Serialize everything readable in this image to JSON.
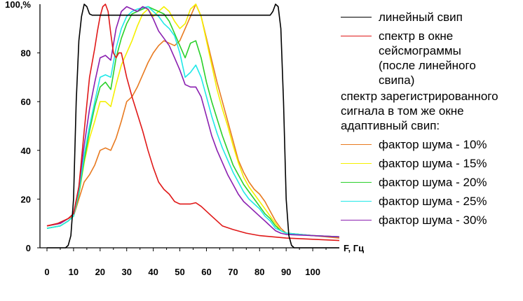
{
  "chart_data": {
    "type": "line",
    "xlabel": "F, Гц",
    "ylabel": "",
    "y_max_tick_label": "100,%",
    "xlim": [
      0,
      110
    ],
    "ylim": [
      0,
      100
    ],
    "x_ticks": [
      "0",
      "10",
      "20",
      "30",
      "40",
      "50",
      "60",
      "70",
      "80",
      "90",
      "100"
    ],
    "y_ticks": [
      "0",
      "20",
      "40",
      "60",
      "80"
    ],
    "grid": false,
    "legend_position": "right",
    "legend_heading": "спектр зарегистрированного сигнала в том же окне адаптивный свип:",
    "series": [
      {
        "name": "линейный свип",
        "color": "#000000",
        "points": [
          [
            0,
            0
          ],
          [
            7,
            0
          ],
          [
            8,
            1
          ],
          [
            9,
            5
          ],
          [
            10,
            20
          ],
          [
            11,
            60
          ],
          [
            12,
            85
          ],
          [
            13,
            95
          ],
          [
            14,
            100
          ],
          [
            15,
            99
          ],
          [
            16,
            96
          ],
          [
            17,
            95.5
          ],
          [
            30,
            95.5
          ],
          [
            50,
            95.5
          ],
          [
            70,
            95.5
          ],
          [
            84,
            95.5
          ],
          [
            85,
            97
          ],
          [
            86,
            100
          ],
          [
            87,
            99
          ],
          [
            88,
            90
          ],
          [
            89,
            60
          ],
          [
            90,
            20
          ],
          [
            91,
            5
          ],
          [
            92,
            1
          ],
          [
            93,
            0
          ],
          [
            110,
            0
          ]
        ]
      },
      {
        "name": "спектр в окне сейсмограммы (после линейного свипа)",
        "color": "#e01818",
        "points": [
          [
            0,
            9
          ],
          [
            4,
            10
          ],
          [
            8,
            12
          ],
          [
            10,
            14
          ],
          [
            12,
            25
          ],
          [
            14,
            48
          ],
          [
            16,
            70
          ],
          [
            18,
            82
          ],
          [
            19,
            89
          ],
          [
            20,
            95
          ],
          [
            21,
            99
          ],
          [
            22,
            100
          ],
          [
            23,
            97
          ],
          [
            24,
            88
          ],
          [
            25,
            80
          ],
          [
            26,
            78
          ],
          [
            27,
            80
          ],
          [
            28,
            80
          ],
          [
            30,
            70
          ],
          [
            32,
            62
          ],
          [
            34,
            55
          ],
          [
            36,
            48
          ],
          [
            38,
            40
          ],
          [
            40,
            33
          ],
          [
            42,
            27
          ],
          [
            44,
            24
          ],
          [
            46,
            22
          ],
          [
            48,
            19
          ],
          [
            50,
            18
          ],
          [
            52,
            18
          ],
          [
            54,
            18
          ],
          [
            56,
            18.5
          ],
          [
            58,
            17
          ],
          [
            60,
            15
          ],
          [
            62,
            13
          ],
          [
            64,
            11
          ],
          [
            66,
            9
          ],
          [
            70,
            7.5
          ],
          [
            75,
            6
          ],
          [
            80,
            5
          ],
          [
            90,
            4
          ],
          [
            100,
            3.5
          ],
          [
            110,
            3
          ]
        ]
      },
      {
        "name": "фактор шума - 10%",
        "color": "#e87a20",
        "points": [
          [
            0,
            9
          ],
          [
            5,
            10
          ],
          [
            8,
            12
          ],
          [
            10,
            13
          ],
          [
            12,
            20
          ],
          [
            14,
            27
          ],
          [
            16,
            30
          ],
          [
            18,
            34
          ],
          [
            20,
            40
          ],
          [
            22,
            41
          ],
          [
            24,
            40
          ],
          [
            26,
            45
          ],
          [
            28,
            52
          ],
          [
            30,
            60
          ],
          [
            32,
            62
          ],
          [
            34,
            66
          ],
          [
            36,
            71
          ],
          [
            38,
            76
          ],
          [
            40,
            80
          ],
          [
            42,
            83
          ],
          [
            44,
            85
          ],
          [
            46,
            84
          ],
          [
            48,
            83
          ],
          [
            50,
            85
          ],
          [
            52,
            90
          ],
          [
            54,
            95
          ],
          [
            56,
            100
          ],
          [
            58,
            95
          ],
          [
            60,
            86
          ],
          [
            62,
            77
          ],
          [
            64,
            68
          ],
          [
            66,
            60
          ],
          [
            68,
            52
          ],
          [
            70,
            44
          ],
          [
            72,
            36
          ],
          [
            74,
            31
          ],
          [
            76,
            27
          ],
          [
            78,
            24
          ],
          [
            80,
            22
          ],
          [
            82,
            19
          ],
          [
            84,
            15
          ],
          [
            86,
            11
          ],
          [
            88,
            8
          ],
          [
            90,
            6
          ],
          [
            100,
            5
          ],
          [
            110,
            4
          ]
        ]
      },
      {
        "name": "фактор шума - 15%",
        "color": "#f5f000",
        "points": [
          [
            0,
            8
          ],
          [
            5,
            9
          ],
          [
            8,
            11
          ],
          [
            10,
            13
          ],
          [
            12,
            22
          ],
          [
            14,
            35
          ],
          [
            16,
            45
          ],
          [
            18,
            52
          ],
          [
            20,
            60
          ],
          [
            22,
            60
          ],
          [
            24,
            58
          ],
          [
            26,
            67
          ],
          [
            28,
            75
          ],
          [
            30,
            80
          ],
          [
            32,
            85
          ],
          [
            34,
            91
          ],
          [
            36,
            96
          ],
          [
            38,
            98
          ],
          [
            40,
            95
          ],
          [
            42,
            97
          ],
          [
            44,
            99
          ],
          [
            46,
            97
          ],
          [
            48,
            93
          ],
          [
            50,
            90
          ],
          [
            52,
            92
          ],
          [
            54,
            98
          ],
          [
            56,
            100
          ],
          [
            58,
            95
          ],
          [
            60,
            85
          ],
          [
            62,
            75
          ],
          [
            64,
            65
          ],
          [
            66,
            57
          ],
          [
            68,
            50
          ],
          [
            70,
            42
          ],
          [
            72,
            35
          ],
          [
            74,
            29
          ],
          [
            76,
            25
          ],
          [
            78,
            22
          ],
          [
            80,
            19
          ],
          [
            82,
            16
          ],
          [
            84,
            13
          ],
          [
            86,
            10
          ],
          [
            88,
            7
          ],
          [
            90,
            6
          ],
          [
            100,
            5
          ],
          [
            110,
            4.5
          ]
        ]
      },
      {
        "name": "фактор шума - 20%",
        "color": "#2ad02a",
        "points": [
          [
            0,
            8
          ],
          [
            5,
            9
          ],
          [
            8,
            11
          ],
          [
            10,
            13
          ],
          [
            12,
            22
          ],
          [
            14,
            36
          ],
          [
            16,
            48
          ],
          [
            18,
            58
          ],
          [
            20,
            66
          ],
          [
            22,
            68
          ],
          [
            24,
            65
          ],
          [
            26,
            78
          ],
          [
            28,
            86
          ],
          [
            30,
            92
          ],
          [
            32,
            96
          ],
          [
            34,
            97
          ],
          [
            36,
            98
          ],
          [
            38,
            99
          ],
          [
            40,
            98
          ],
          [
            42,
            97
          ],
          [
            44,
            96
          ],
          [
            46,
            93
          ],
          [
            48,
            88
          ],
          [
            50,
            83
          ],
          [
            52,
            78
          ],
          [
            54,
            84
          ],
          [
            56,
            85
          ],
          [
            58,
            78
          ],
          [
            60,
            68
          ],
          [
            62,
            60
          ],
          [
            64,
            53
          ],
          [
            66,
            46
          ],
          [
            68,
            40
          ],
          [
            70,
            34
          ],
          [
            72,
            30
          ],
          [
            74,
            26
          ],
          [
            76,
            23
          ],
          [
            78,
            20
          ],
          [
            80,
            17
          ],
          [
            82,
            14
          ],
          [
            84,
            12
          ],
          [
            86,
            9
          ],
          [
            88,
            7
          ],
          [
            90,
            6
          ],
          [
            100,
            5
          ],
          [
            110,
            4.5
          ]
        ]
      },
      {
        "name": "фактор шума - 25%",
        "color": "#20e8e8",
        "points": [
          [
            0,
            8
          ],
          [
            5,
            9
          ],
          [
            8,
            11
          ],
          [
            10,
            13
          ],
          [
            12,
            23
          ],
          [
            14,
            38
          ],
          [
            16,
            50
          ],
          [
            18,
            60
          ],
          [
            20,
            70
          ],
          [
            22,
            71
          ],
          [
            24,
            70
          ],
          [
            26,
            82
          ],
          [
            28,
            90
          ],
          [
            30,
            95
          ],
          [
            32,
            97
          ],
          [
            34,
            98
          ],
          [
            36,
            98.5
          ],
          [
            38,
            99
          ],
          [
            40,
            97
          ],
          [
            42,
            95
          ],
          [
            44,
            92
          ],
          [
            46,
            90
          ],
          [
            48,
            87
          ],
          [
            50,
            80
          ],
          [
            52,
            70
          ],
          [
            54,
            72
          ],
          [
            56,
            75
          ],
          [
            58,
            70
          ],
          [
            60,
            62
          ],
          [
            62,
            54
          ],
          [
            64,
            47
          ],
          [
            66,
            41
          ],
          [
            68,
            36
          ],
          [
            70,
            31
          ],
          [
            72,
            27
          ],
          [
            74,
            23
          ],
          [
            76,
            20
          ],
          [
            78,
            18
          ],
          [
            80,
            16
          ],
          [
            82,
            13
          ],
          [
            84,
            11
          ],
          [
            86,
            8
          ],
          [
            88,
            7
          ],
          [
            90,
            6
          ],
          [
            100,
            5
          ],
          [
            110,
            4.5
          ]
        ]
      },
      {
        "name": "фактор шума - 30%",
        "color": "#8a1fb0",
        "points": [
          [
            0,
            9
          ],
          [
            5,
            10
          ],
          [
            8,
            12
          ],
          [
            10,
            14
          ],
          [
            12,
            25
          ],
          [
            14,
            42
          ],
          [
            16,
            57
          ],
          [
            18,
            68
          ],
          [
            20,
            78
          ],
          [
            22,
            79
          ],
          [
            24,
            77
          ],
          [
            26,
            90
          ],
          [
            28,
            97
          ],
          [
            30,
            99
          ],
          [
            32,
            98
          ],
          [
            34,
            97
          ],
          [
            36,
            99
          ],
          [
            38,
            98
          ],
          [
            40,
            94
          ],
          [
            42,
            89
          ],
          [
            44,
            86
          ],
          [
            46,
            83
          ],
          [
            48,
            78
          ],
          [
            50,
            73
          ],
          [
            52,
            67
          ],
          [
            54,
            66
          ],
          [
            56,
            66
          ],
          [
            58,
            62
          ],
          [
            60,
            54
          ],
          [
            62,
            46
          ],
          [
            64,
            40
          ],
          [
            66,
            35
          ],
          [
            68,
            30
          ],
          [
            70,
            26
          ],
          [
            72,
            22
          ],
          [
            74,
            19
          ],
          [
            76,
            17
          ],
          [
            78,
            15
          ],
          [
            80,
            13
          ],
          [
            82,
            11
          ],
          [
            84,
            9
          ],
          [
            86,
            7
          ],
          [
            88,
            6
          ],
          [
            90,
            5.5
          ],
          [
            100,
            5
          ],
          [
            110,
            4.5
          ]
        ]
      }
    ]
  }
}
